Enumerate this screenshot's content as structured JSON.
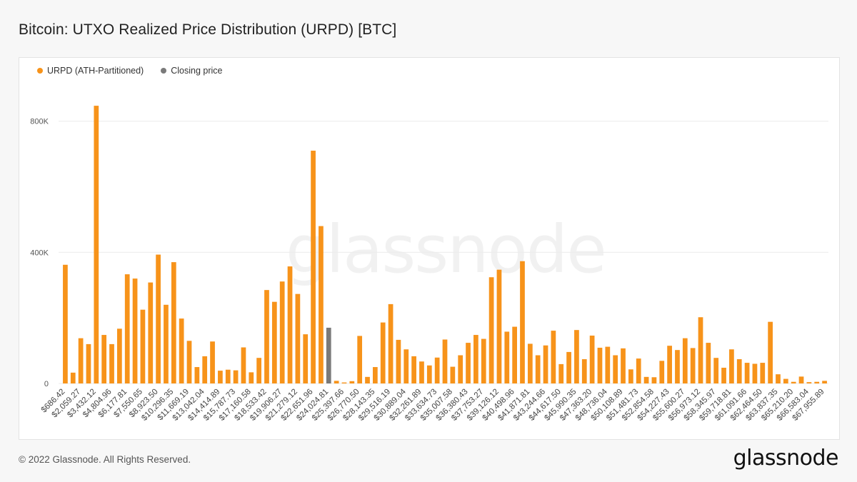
{
  "title": "Bitcoin: UTXO Realized Price Distribution (URPD) [BTC]",
  "legend": [
    {
      "label": "URPD (ATH-Partitioned)",
      "color": "#f7931a"
    },
    {
      "label": "Closing price",
      "color": "#7a7a7a"
    }
  ],
  "watermark": "glassnode",
  "footer": {
    "copyright": "© 2022 Glassnode. All Rights Reserved.",
    "logo": "glassnode"
  },
  "chart_data": {
    "type": "bar",
    "y_ticks": [
      {
        "value": 0,
        "label": "0"
      },
      {
        "value": 400000,
        "label": "400K"
      },
      {
        "value": 800000,
        "label": "800K"
      }
    ],
    "ylim": [
      0,
      930000
    ],
    "grid": true,
    "x_tick_labels": [
      "$686.42",
      "$2,059.27",
      "$3,432.12",
      "$4,804.96",
      "$6,177.81",
      "$7,550.65",
      "$8,923.50",
      "$10,296.35",
      "$11,669.19",
      "$13,042.04",
      "$14,414.89",
      "$15,787.73",
      "$17,160.58",
      "$18,533.42",
      "$19,906.27",
      "$21,279.12",
      "$22,651.96",
      "$24,024.81",
      "$25,397.66",
      "$26,770.50",
      "$28,143.35",
      "$29,516.19",
      "$30,889.04",
      "$32,261.89",
      "$33,634.73",
      "$35,007.58",
      "$36,380.43",
      "$37,753.27",
      "$39,126.12",
      "$40,498.96",
      "$41,871.81",
      "$43,244.66",
      "$44,617.50",
      "$45,990.35",
      "$47,363.20",
      "$48,736.04",
      "$50,108.89",
      "$51,481.73",
      "$52,854.58",
      "$54,227.43",
      "$55,600.27",
      "$56,973.12",
      "$58,345.97",
      "$59,718.81",
      "$61,091.66",
      "$62,464.50",
      "$63,837.35",
      "$65,210.20",
      "$66,583.04",
      "$67,955.89"
    ],
    "closing_price_index": 34,
    "values": [
      362000,
      33000,
      138000,
      120000,
      847000,
      148000,
      120000,
      167000,
      333000,
      320000,
      225000,
      308000,
      393000,
      240000,
      370000,
      198000,
      130000,
      50000,
      83000,
      128000,
      39000,
      42000,
      40000,
      110000,
      34000,
      78000,
      285000,
      249000,
      311000,
      357000,
      273000,
      150000,
      710000,
      480000,
      170000,
      8000,
      3000,
      7000,
      145000,
      20000,
      50000,
      186000,
      242000,
      133000,
      104000,
      83000,
      67000,
      55000,
      79000,
      134000,
      51000,
      86000,
      124000,
      148000,
      136000,
      324000,
      347000,
      158000,
      173000,
      373000,
      121000,
      86000,
      116000,
      161000,
      59000,
      96000,
      163000,
      74000,
      146000,
      109000,
      112000,
      86000,
      107000,
      43000,
      76000,
      20000,
      19000,
      69000,
      115000,
      102000,
      138000,
      108000,
      202000,
      124000,
      78000,
      48000,
      104000,
      74000,
      63000,
      60000,
      63000,
      188000,
      28000,
      14000,
      5000,
      21000,
      4000,
      5000,
      8000
    ]
  }
}
